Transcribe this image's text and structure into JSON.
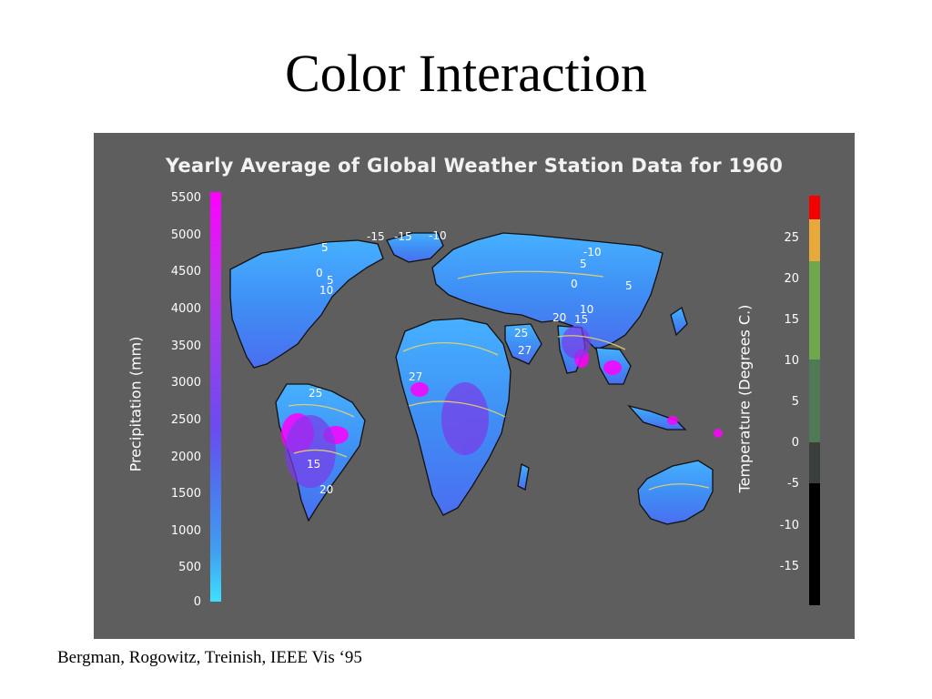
{
  "slide": {
    "title": "Color Interaction",
    "citation": "Bergman, Rogowitz, Treinish, IEEE Vis ‘95"
  },
  "figure": {
    "title": "Yearly Average of Global Weather Station Data for 1960",
    "precipitation_axis": {
      "label": "Precipitation (mm)",
      "ticks": [
        "5500",
        "5000",
        "4500",
        "4000",
        "3500",
        "3000",
        "2500",
        "2000",
        "1500",
        "1000",
        "500",
        "0"
      ],
      "colormap": [
        "#3ee0ff",
        "#3fa0f0",
        "#4e74f0",
        "#6a4cf0",
        "#9340ee",
        "#c030ec",
        "#ff00ff"
      ]
    },
    "temperature_axis": {
      "label": "Temperature (Degrees C.)",
      "ticks": [
        "25",
        "20",
        "15",
        "10",
        "5",
        "0",
        "-5",
        "-10",
        "-15"
      ],
      "bands": [
        {
          "range": "above 30",
          "color": "#f50000"
        },
        {
          "range": "25 to 30",
          "color": "#e9a83a"
        },
        {
          "range": "15 to 25",
          "color": "#6fa84a"
        },
        {
          "range": "5 to 15",
          "color": "#4e7b56"
        },
        {
          "range": "0 to 5",
          "color": "#3a3f3b"
        },
        {
          "range": "below 0",
          "color": "#000000"
        }
      ]
    },
    "isotherm_labels": [
      "-15",
      "-15",
      "-10",
      "5",
      "0",
      "5",
      "10",
      "-10",
      "5",
      "0",
      "5",
      "10",
      "20",
      "15",
      "25",
      "27",
      "27",
      "25",
      "15",
      "20"
    ]
  }
}
